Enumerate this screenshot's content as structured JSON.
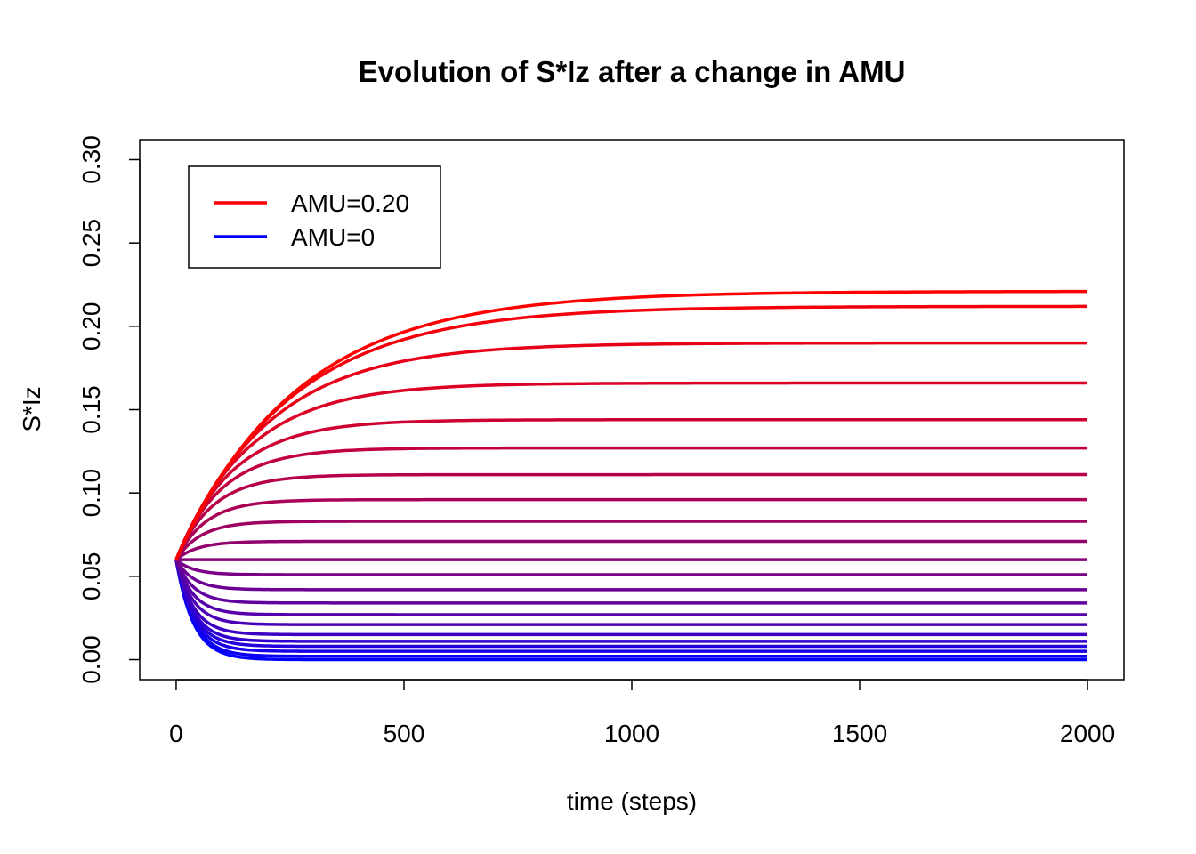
{
  "chart_data": {
    "type": "line",
    "title": "Evolution of S*Iz after a change in AMU",
    "xlabel": "time (steps)",
    "ylabel": "S*Iz",
    "xlim": [
      -80,
      2080
    ],
    "ylim": [
      -0.012,
      0.312
    ],
    "x_ticks": [
      0,
      500,
      1000,
      1500,
      2000
    ],
    "x_tick_labels": [
      "0",
      "500",
      "1000",
      "1500",
      "2000"
    ],
    "y_ticks": [
      0.0,
      0.05,
      0.1,
      0.15,
      0.2,
      0.25,
      0.3
    ],
    "y_tick_labels": [
      "0.00",
      "0.05",
      "0.10",
      "0.15",
      "0.20",
      "0.25",
      "0.30"
    ],
    "grid": false,
    "legend": {
      "position": "top-left",
      "entries": [
        {
          "label": "AMU=0.20",
          "color": "#ff0000"
        },
        {
          "label": "AMU=0",
          "color": "#0000ff"
        }
      ]
    },
    "color_gradient": {
      "from": "#0000ff",
      "to": "#ff0000"
    },
    "initial_value": 0.06,
    "x_end": 2000,
    "series_final_values": [
      0.0,
      0.002,
      0.005,
      0.008,
      0.011,
      0.015,
      0.021,
      0.027,
      0.034,
      0.042,
      0.051,
      0.06,
      0.071,
      0.083,
      0.096,
      0.111,
      0.127,
      0.144,
      0.166,
      0.19,
      0.212,
      0.221
    ]
  }
}
